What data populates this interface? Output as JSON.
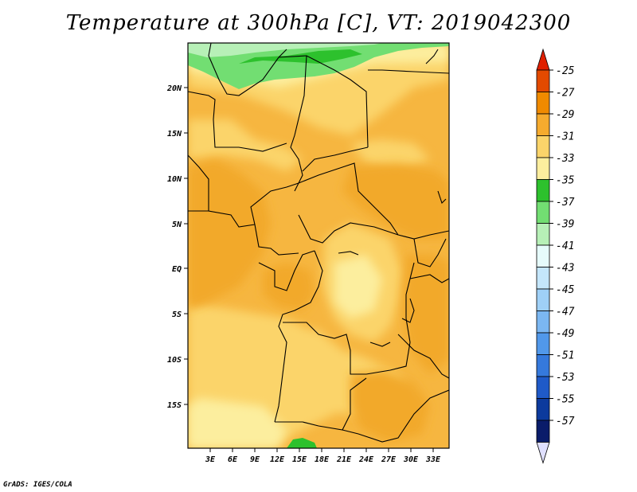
{
  "title": "Temperature at 300hPa [C], VT: 2019042300",
  "credit": "GrADS: IGES/COLA",
  "map": {
    "lat_ticks": [
      "20N",
      "15N",
      "10N",
      "5N",
      "EQ",
      "5S",
      "10S",
      "15S"
    ],
    "lon_ticks": [
      "3E",
      "6E",
      "9E",
      "12E",
      "15E",
      "18E",
      "21E",
      "24E",
      "27E",
      "30E",
      "33E"
    ]
  },
  "colorbar": {
    "levels": [
      "-25",
      "-27",
      "-29",
      "-31",
      "-33",
      "-35",
      "-37",
      "-39",
      "-41",
      "-43",
      "-45",
      "-47",
      "-49",
      "-51",
      "-53",
      "-55",
      "-57"
    ],
    "colors": [
      "#e34a00",
      "#f08a00",
      "#f6ab2e",
      "#fbd46a",
      "#fcee9e",
      "#2dc12d",
      "#72de72",
      "#b7f0b7",
      "#e6fbfb",
      "#c4e6fb",
      "#9fd0f7",
      "#7bb7f2",
      "#5198ea",
      "#3579dc",
      "#1f5ac8",
      "#0c3a9d",
      "#0a1c6a"
    ],
    "top_color": "#e02000",
    "bottom_color": "#e0e0ff"
  }
}
